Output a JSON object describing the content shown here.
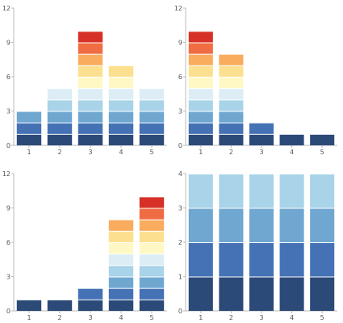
{
  "palette": [
    "#2c4a78",
    "#4472b5",
    "#6fa7d1",
    "#a8d3e8",
    "#dcedf6",
    "#fff8c4",
    "#fde08f",
    "#f9ac5e",
    "#f06d43",
    "#d73027"
  ],
  "chart_data": [
    {
      "type": "bar",
      "stacked": true,
      "categories": [
        "1",
        "2",
        "3",
        "4",
        "5"
      ],
      "segment_counts": [
        3,
        5,
        10,
        7,
        5
      ],
      "segment_value": 1,
      "ylim": [
        0,
        12
      ],
      "yticks": [
        0,
        3,
        6,
        9,
        12
      ],
      "title": "",
      "xlabel": "",
      "ylabel": ""
    },
    {
      "type": "bar",
      "stacked": true,
      "categories": [
        "1",
        "2",
        "3",
        "4",
        "5"
      ],
      "segment_counts": [
        10,
        8,
        2,
        1,
        1
      ],
      "segment_value": 1,
      "ylim": [
        0,
        12
      ],
      "yticks": [
        0,
        3,
        6,
        9,
        12
      ],
      "title": "",
      "xlabel": "",
      "ylabel": ""
    },
    {
      "type": "bar",
      "stacked": true,
      "categories": [
        "1",
        "2",
        "3",
        "4",
        "5"
      ],
      "segment_counts": [
        1,
        1,
        2,
        8,
        10
      ],
      "segment_value": 1,
      "ylim": [
        0,
        12
      ],
      "yticks": [
        0,
        3,
        6,
        9,
        12
      ],
      "title": "",
      "xlabel": "",
      "ylabel": ""
    },
    {
      "type": "bar",
      "stacked": true,
      "categories": [
        "1",
        "2",
        "3",
        "4",
        "5"
      ],
      "segment_counts": [
        4,
        4,
        4,
        4,
        4
      ],
      "segment_value": 1,
      "ylim": [
        0,
        4
      ],
      "yticks": [
        0,
        1,
        2,
        3,
        4
      ],
      "title": "",
      "xlabel": "",
      "ylabel": ""
    }
  ]
}
